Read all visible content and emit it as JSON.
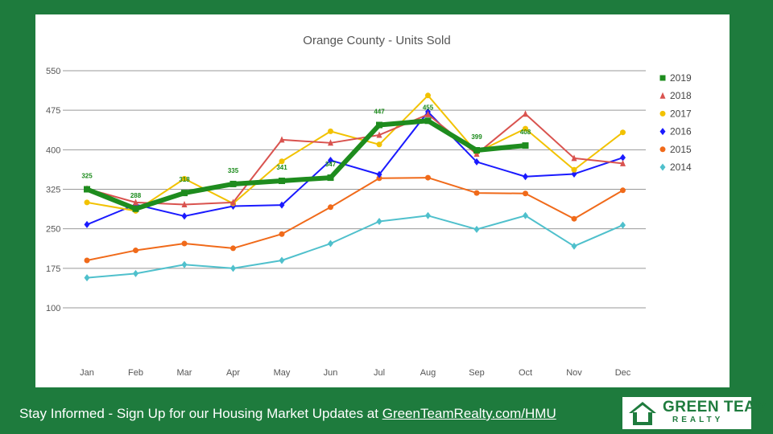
{
  "chart_data": {
    "type": "line",
    "title": "Orange County - Units Sold",
    "categories": [
      "Jan",
      "Feb",
      "Mar",
      "Apr",
      "May",
      "Jun",
      "Jul",
      "Aug",
      "Sep",
      "Oct",
      "Nov",
      "Dec"
    ],
    "y_ticks": [
      "550",
      "475",
      "400",
      "325",
      "250",
      "175",
      "100"
    ],
    "ylim": [
      100,
      550
    ],
    "grid": true,
    "legend_position": "right",
    "series": [
      {
        "name": "2019",
        "color": "#1e8c1e",
        "marker": "square",
        "width": 6,
        "values": [
          325,
          288,
          318,
          335,
          341,
          347,
          447,
          455,
          399,
          408,
          null,
          null
        ]
      },
      {
        "name": "2018",
        "color": "#d9534f",
        "marker": "triangle",
        "width": 2,
        "values": [
          326,
          300,
          296,
          300,
          419,
          413,
          428,
          467,
          392,
          468,
          384,
          374
        ]
      },
      {
        "name": "2017",
        "color": "#f2c200",
        "marker": "circle",
        "width": 2,
        "values": [
          300,
          284,
          345,
          298,
          378,
          435,
          410,
          503,
          395,
          440,
          362,
          433
        ]
      },
      {
        "name": "2016",
        "color": "#1a1aff",
        "marker": "diamond",
        "width": 2,
        "values": [
          258,
          296,
          274,
          293,
          295,
          380,
          353,
          472,
          377,
          349,
          354,
          385
        ]
      },
      {
        "name": "2015",
        "color": "#f06a1a",
        "marker": "circle",
        "width": 2,
        "values": [
          190,
          209,
          222,
          213,
          240,
          291,
          346,
          347,
          318,
          317,
          269,
          323
        ]
      },
      {
        "name": "2014",
        "color": "#4fc0cc",
        "marker": "diamond",
        "width": 2,
        "values": [
          157,
          165,
          182,
          175,
          190,
          222,
          264,
          275,
          249,
          275,
          217,
          257
        ]
      }
    ],
    "data_labels": {
      "series": "2019",
      "labels": [
        "325",
        "288",
        "318",
        "335",
        "341",
        "347",
        "447",
        "455",
        "399",
        "408"
      ]
    }
  },
  "footer": {
    "text": "Stay Informed - Sign Up for our Housing Market Updates at ",
    "link": "GreenTeamRealty.com/HMU"
  },
  "logo": {
    "line1": "GREEN TEAM",
    "line2": "REALTY"
  }
}
